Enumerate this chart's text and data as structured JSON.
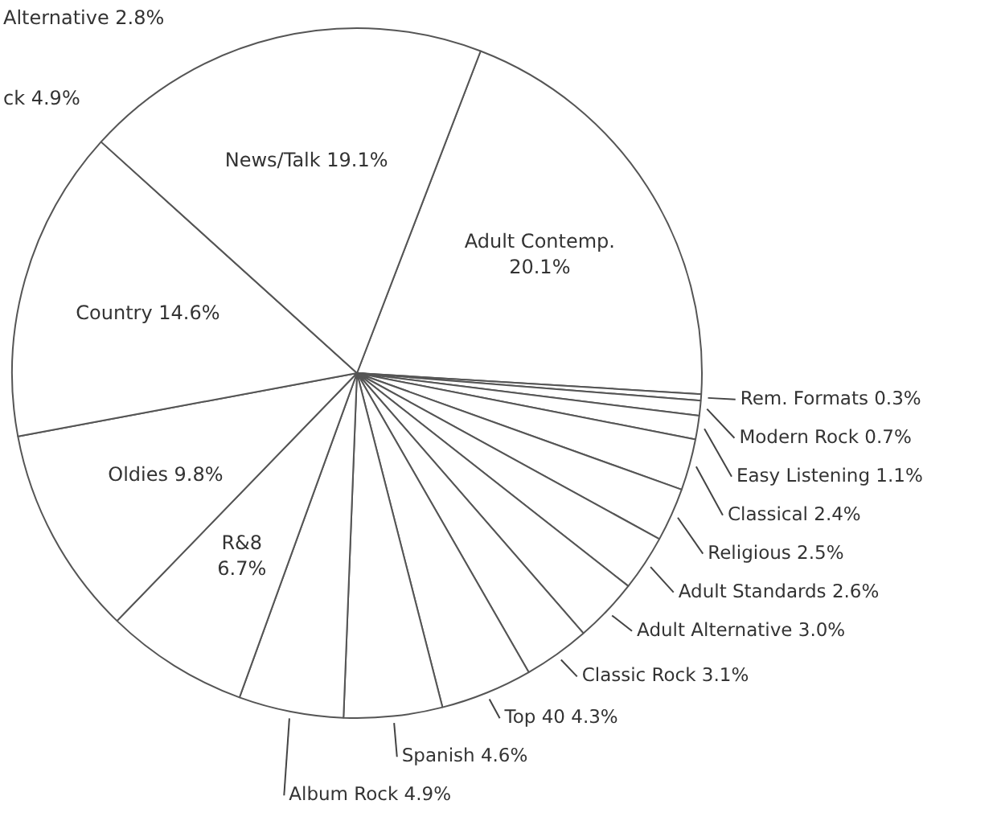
{
  "chart_data": {
    "type": "pie",
    "categories": [
      "Adult Contemp.",
      "Rem. Formats",
      "Modern Rock",
      "Easy Listening",
      "Classical",
      "Religious",
      "Adult Standards",
      "Adult Alternative",
      "Classic Rock",
      "Top 40",
      "Spanish",
      "Album Rock",
      "R&8",
      "Oldies",
      "Country",
      "News/Talk"
    ],
    "values": [
      20.1,
      0.3,
      0.7,
      1.1,
      2.4,
      2.5,
      2.6,
      3.0,
      3.1,
      4.3,
      4.6,
      4.9,
      6.7,
      9.8,
      14.6,
      19.1
    ],
    "colors": [
      "#ffffff",
      "#ffffff",
      "#ffffff",
      "#ffffff",
      "#ffffff",
      "#ffffff",
      "#ffffff",
      "#ffffff",
      "#ffffff",
      "#ffffff",
      "#ffffff",
      "#ffffff",
      "#ffffff",
      "#ffffff",
      "#ffffff",
      "#ffffff"
    ],
    "value_labels": [
      "20.1%",
      "0.3%",
      "0.7%",
      "1.1%",
      "2.4%",
      "2.5%",
      "2.6%",
      "3.0%",
      "3.1%",
      "4.3%",
      "4.6%",
      "4.9%",
      "6.7%",
      "9.8%",
      "14.6%",
      "19.1%"
    ],
    "annotations": [
      "Alternative 2.8%",
      "ck 4.9%"
    ]
  }
}
